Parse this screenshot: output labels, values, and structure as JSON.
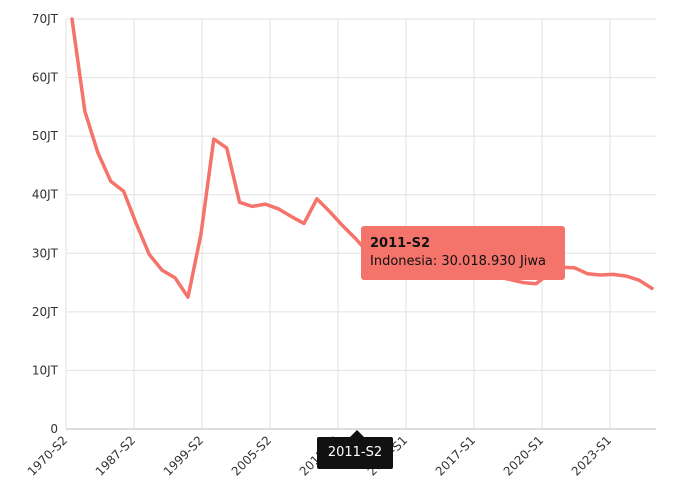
{
  "chart_data": {
    "type": "line",
    "title": "",
    "xlabel": "",
    "ylabel": "",
    "ylim": [
      0,
      70000000
    ],
    "y_ticks": [
      {
        "value": 0,
        "label": "0"
      },
      {
        "value": 10000000,
        "label": "10JT"
      },
      {
        "value": 20000000,
        "label": "20JT"
      },
      {
        "value": 30000000,
        "label": "30JT"
      },
      {
        "value": 40000000,
        "label": "40JT"
      },
      {
        "value": 50000000,
        "label": "50JT"
      },
      {
        "value": 60000000,
        "label": "60JT"
      },
      {
        "value": 70000000,
        "label": "70JT"
      }
    ],
    "x_tick_labels": [
      "1970-S2",
      "1987-S2",
      "1999-S2",
      "2005-S2",
      "2011-S2",
      "2014-S1",
      "2017-S1",
      "2020-S1",
      "2023-S1"
    ],
    "grid": true,
    "line_color": "#f4736a",
    "series": [
      {
        "name": "Indonesia",
        "x": [
          "1970-S2",
          "1976",
          "1980",
          "1984",
          "1987-S1",
          "1987-S2",
          "1990",
          "1993",
          "1996",
          "1998",
          "1999-S1",
          "1999-S2",
          "2002",
          "2003",
          "2004",
          "2005-S1",
          "2005-S2",
          "2006",
          "2007",
          "2008",
          "2009",
          "2010",
          "2011-S1",
          "2011-S2",
          "2012",
          "2013",
          "2014-S1",
          "2014-S2",
          "2015",
          "2016",
          "2017-S1",
          "2017-S2",
          "2018-S1",
          "2018-S2",
          "2019-S1",
          "2019-S2",
          "2020-S1",
          "2020-S2",
          "2021-S1",
          "2021-S2",
          "2022-S1",
          "2022-S2",
          "2023-S1",
          "2023-S2",
          "2024-S1",
          "2024-S2"
        ],
        "values": [
          70000000,
          54200000,
          47200000,
          42300000,
          40600000,
          35000000,
          29800000,
          27100000,
          25800000,
          22500000,
          33200000,
          49500000,
          48000000,
          38700000,
          38000000,
          38400000,
          37600000,
          36300000,
          35100000,
          39300000,
          37100000,
          34700000,
          32500000,
          30018930,
          30050000,
          30000000,
          29500000,
          29000000,
          28700000,
          28300000,
          27700000,
          27100000,
          26500000,
          26000000,
          25500000,
          25000000,
          24800000,
          26500000,
          27600000,
          27500000,
          26500000,
          26300000,
          26400000,
          26100000,
          25400000,
          24000000
        ]
      }
    ],
    "tooltip": {
      "title": "2011-S2",
      "text": "Indonesia: 30.018.930 Jiwa",
      "background": "#f4736a"
    },
    "axis_tooltip": "2011-S2"
  }
}
